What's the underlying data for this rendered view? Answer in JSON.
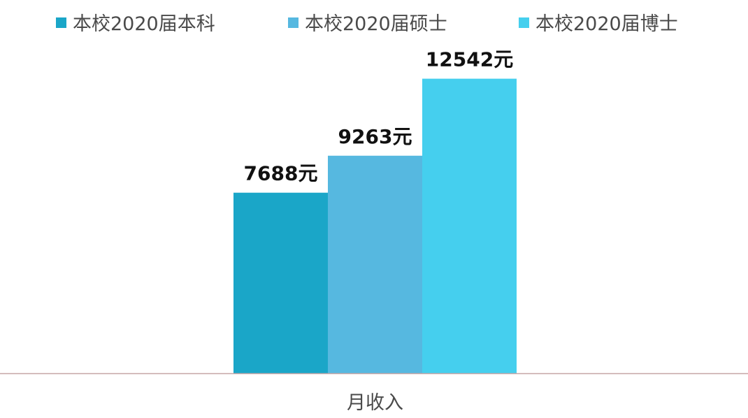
{
  "chart_data": {
    "type": "bar",
    "categories": [
      "月收入"
    ],
    "series": [
      {
        "name": "本校2020届本科",
        "values": [
          7688
        ],
        "label": "7688元",
        "color": "#1aa6c8"
      },
      {
        "name": "本校2020届硕士",
        "values": [
          9263
        ],
        "label": "9263元",
        "color": "#56b8e0"
      },
      {
        "name": "本校2020届博士",
        "values": [
          12542
        ],
        "label": "12542元",
        "color": "#45cfee"
      }
    ],
    "unit": "元",
    "title": "",
    "xlabel": "",
    "ylabel": "",
    "ylim": [
      0,
      15000
    ],
    "grid": false,
    "legend_position": "top",
    "axis_color": "#c5a5a5"
  }
}
